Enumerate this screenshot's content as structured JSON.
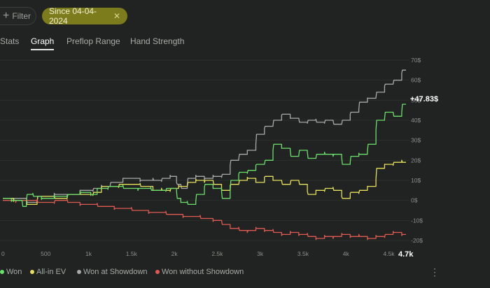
{
  "toolbar": {
    "filter_label": "Filter",
    "filter_icon": "plus-icon",
    "chip_label": "Since 04-04-2024",
    "chip_close_icon": "close-icon"
  },
  "tabs": [
    {
      "label": "Stats",
      "active": false
    },
    {
      "label": "Graph",
      "active": true
    },
    {
      "label": "Preflop Range",
      "active": false
    },
    {
      "label": "Hand Strength",
      "active": false
    }
  ],
  "legend": [
    {
      "label": "Won",
      "color": "#6be06b"
    },
    {
      "label": "All-in EV",
      "color": "#e6e05a"
    },
    {
      "label": "Won at Showdown",
      "color": "#a9a9a9"
    },
    {
      "label": "Won without Showdown",
      "color": "#e05a52"
    }
  ],
  "menu_icon": "more-vertical-icon",
  "chart_data": {
    "type": "line",
    "x_ticks": [
      "0",
      "500",
      "1k",
      "1.5k",
      "2k",
      "2.5k",
      "3k",
      "3.5k",
      "4k",
      "4.5k"
    ],
    "x_end_label": "4.7k",
    "y_ticks": [
      "70$",
      "60$",
      "50$",
      "40$",
      "30$",
      "20$",
      "10$",
      "0$",
      "-10$",
      "-20$"
    ],
    "current_value_label": "+47.83$",
    "xlim": [
      0,
      4700
    ],
    "ylim": [
      -20,
      70
    ],
    "series": [
      {
        "name": "Won",
        "color": "#6be06b",
        "x": [
          0,
          200,
          250,
          300,
          400,
          500,
          700,
          800,
          1000,
          1050,
          1150,
          1300,
          1500,
          1650,
          1800,
          2000,
          2050,
          2100,
          2200,
          2300,
          2400,
          2500,
          2600,
          2700,
          2800,
          2900,
          3000,
          3100,
          3200,
          3300,
          3400,
          3500,
          3600,
          3700,
          3800,
          3900,
          4000,
          4100,
          4200,
          4300,
          4400,
          4500,
          4600,
          4700
        ],
        "y": [
          1,
          0,
          -3,
          3,
          2,
          1,
          2,
          3,
          4,
          3,
          6,
          7,
          6,
          6,
          5,
          6,
          1,
          -1,
          -2,
          3,
          8,
          6,
          1,
          10,
          14,
          15,
          18,
          20,
          28,
          26,
          22,
          25,
          21,
          23,
          23,
          23,
          18,
          22,
          23,
          28,
          40,
          44,
          42,
          48
        ]
      },
      {
        "name": "All-in EV",
        "color": "#e6e05a",
        "x": [
          0,
          250,
          300,
          500,
          700,
          800,
          1000,
          1100,
          1200,
          1500,
          1700,
          1800,
          1900,
          2000,
          2100,
          2200,
          2300,
          2400,
          2500,
          2600,
          2700,
          2800,
          2900,
          3000,
          3100,
          3200,
          3300,
          3400,
          3500,
          3600,
          3700,
          3800,
          3900,
          4000,
          4100,
          4200,
          4300,
          4400,
          4500,
          4600,
          4700
        ],
        "y": [
          1,
          0,
          -2,
          2,
          1,
          3,
          3,
          4,
          7,
          8,
          7,
          5,
          5,
          6,
          7,
          9,
          10,
          10,
          8,
          5,
          8,
          10,
          11,
          9,
          12,
          10,
          8,
          10,
          8,
          3,
          5,
          6,
          5,
          1,
          4,
          5,
          7,
          16,
          18,
          19,
          19
        ]
      },
      {
        "name": "Won at Showdown",
        "color": "#a9a9a9",
        "x": [
          0,
          250,
          300,
          500,
          700,
          800,
          1000,
          1100,
          1200,
          1300,
          1500,
          1700,
          1800,
          1900,
          2000,
          2050,
          2100,
          2200,
          2300,
          2400,
          2500,
          2600,
          2700,
          2800,
          2900,
          3000,
          3100,
          3200,
          3300,
          3400,
          3500,
          3600,
          3700,
          3800,
          3900,
          4000,
          4100,
          4200,
          4300,
          4400,
          4500,
          4600,
          4700
        ],
        "y": [
          1,
          1,
          -1,
          2,
          3,
          3,
          5,
          6,
          7,
          9,
          11,
          10,
          10,
          11,
          12,
          8,
          6,
          11,
          12,
          11,
          12,
          13,
          20,
          23,
          25,
          33,
          37,
          40,
          43,
          41,
          39,
          40,
          39,
          40,
          38,
          40,
          44,
          49,
          51,
          54,
          58,
          60,
          65
        ]
      },
      {
        "name": "Won without Showdown",
        "color": "#e05a52",
        "x": [
          0,
          300,
          500,
          700,
          800,
          1000,
          1200,
          1400,
          1600,
          1800,
          2000,
          2200,
          2400,
          2500,
          2600,
          2700,
          2800,
          2900,
          3000,
          3100,
          3200,
          3300,
          3400,
          3500,
          3600,
          3700,
          3800,
          3900,
          4000,
          4100,
          4200,
          4300,
          4400,
          4500,
          4600,
          4700
        ],
        "y": [
          0,
          0,
          -1,
          0,
          -1,
          -2,
          -3,
          -4,
          -5,
          -6,
          -7,
          -8,
          -9,
          -10,
          -12,
          -14,
          -15,
          -15,
          -14,
          -15,
          -16,
          -17,
          -16,
          -17,
          -18,
          -19,
          -18,
          -18,
          -17,
          -18,
          -18,
          -19,
          -18,
          -17,
          -16,
          -17
        ]
      }
    ]
  }
}
